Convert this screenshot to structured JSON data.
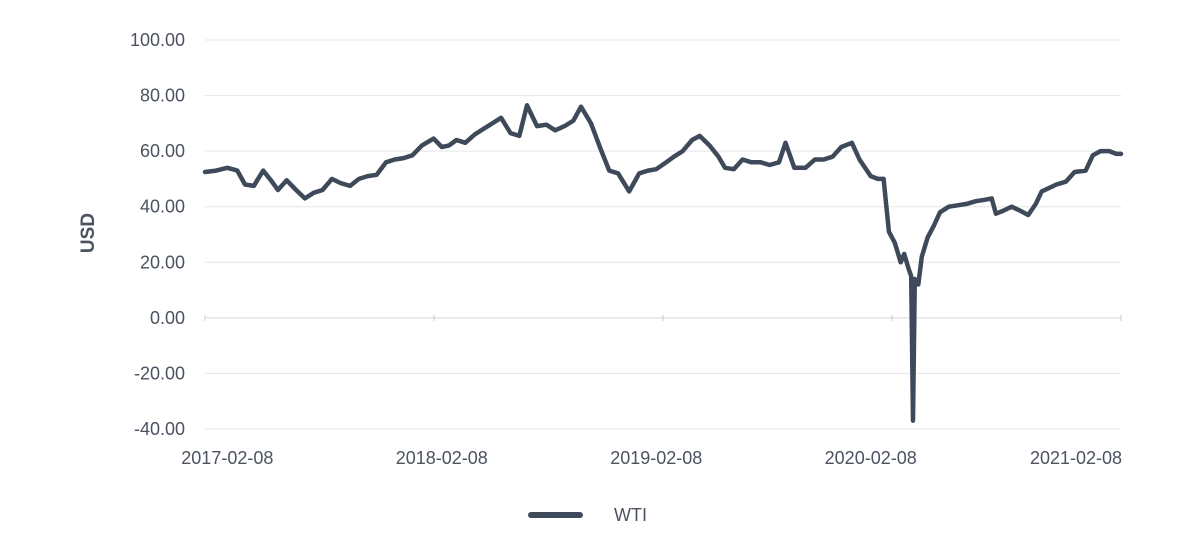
{
  "chart_data": {
    "type": "line",
    "title": "",
    "xlabel": "",
    "ylabel": "USD",
    "ylim": [
      -40,
      100
    ],
    "xlim": [
      "2017-01-01",
      "2021-04-09"
    ],
    "y_ticks": [
      "100.00",
      "80.00",
      "60.00",
      "40.00",
      "20.00",
      "0.00",
      "-20.00",
      "-40.00"
    ],
    "x_ticks": [
      "2017-02-08",
      "2018-02-08",
      "2019-02-08",
      "2020-02-08",
      "2021-02-08"
    ],
    "grid": "horizontal",
    "legend_position": "bottom",
    "line_color": "#3e4a5a",
    "series": [
      {
        "name": "WTI",
        "x": [
          "2017-01-01",
          "2017-01-20",
          "2017-02-08",
          "2017-02-25",
          "2017-03-10",
          "2017-03-25",
          "2017-04-10",
          "2017-04-25",
          "2017-05-05",
          "2017-05-20",
          "2017-06-05",
          "2017-06-20",
          "2017-07-05",
          "2017-07-20",
          "2017-08-05",
          "2017-08-20",
          "2017-09-05",
          "2017-09-20",
          "2017-10-05",
          "2017-10-20",
          "2017-11-05",
          "2017-11-20",
          "2017-12-05",
          "2017-12-20",
          "2018-01-05",
          "2018-01-25",
          "2018-02-08",
          "2018-02-20",
          "2018-03-05",
          "2018-03-20",
          "2018-04-05",
          "2018-04-20",
          "2018-05-05",
          "2018-05-20",
          "2018-06-05",
          "2018-06-20",
          "2018-07-03",
          "2018-07-20",
          "2018-08-05",
          "2018-08-20",
          "2018-09-05",
          "2018-09-20",
          "2018-10-03",
          "2018-10-20",
          "2018-11-05",
          "2018-11-20",
          "2018-12-05",
          "2018-12-24",
          "2019-01-10",
          "2019-01-25",
          "2019-02-08",
          "2019-02-25",
          "2019-03-10",
          "2019-03-25",
          "2019-04-10",
          "2019-04-23",
          "2019-05-10",
          "2019-05-25",
          "2019-06-05",
          "2019-06-20",
          "2019-07-05",
          "2019-07-20",
          "2019-08-05",
          "2019-08-20",
          "2019-09-05",
          "2019-09-16",
          "2019-10-01",
          "2019-10-20",
          "2019-11-05",
          "2019-11-20",
          "2019-12-05",
          "2019-12-20",
          "2020-01-07",
          "2020-01-20",
          "2020-02-08",
          "2020-02-20",
          "2020-03-01",
          "2020-03-10",
          "2020-03-20",
          "2020-03-30",
          "2020-04-05",
          "2020-04-12",
          "2020-04-17",
          "2020-04-20",
          "2020-04-23",
          "2020-04-29",
          "2020-05-05",
          "2020-05-15",
          "2020-05-25",
          "2020-06-05",
          "2020-06-20",
          "2020-07-05",
          "2020-07-20",
          "2020-08-05",
          "2020-08-20",
          "2020-09-01",
          "2020-09-08",
          "2020-09-20",
          "2020-10-05",
          "2020-10-20",
          "2020-11-02",
          "2020-11-15",
          "2020-11-25",
          "2020-12-05",
          "2020-12-20",
          "2021-01-05",
          "2021-01-20",
          "2021-02-08",
          "2021-02-20",
          "2021-03-05",
          "2021-03-20",
          "2021-04-01",
          "2021-04-09"
        ],
        "values": [
          52.5,
          53,
          54,
          53,
          48,
          47.5,
          53,
          49,
          46,
          49.5,
          46,
          43,
          45,
          46,
          50,
          48.5,
          47.5,
          50,
          51,
          51.5,
          56,
          57,
          57.5,
          58.5,
          62,
          64.5,
          61.5,
          62,
          64,
          63,
          66,
          68,
          70,
          72,
          66.5,
          65.5,
          76.5,
          69,
          69.5,
          67.5,
          69,
          71,
          76,
          70,
          61,
          53,
          52,
          45.5,
          52,
          53,
          53.5,
          56,
          58,
          60,
          64,
          65.5,
          62,
          58,
          54,
          53.5,
          57,
          56,
          56,
          55,
          56,
          63,
          54,
          54,
          57,
          57,
          58,
          61.5,
          63,
          57,
          51,
          50,
          50,
          31,
          27,
          20,
          23,
          18,
          15,
          -37,
          14,
          12,
          22,
          29,
          33,
          38,
          40,
          40.5,
          41,
          42,
          42.5,
          43,
          37.5,
          38.5,
          40,
          38.5,
          37,
          41,
          45.5,
          46.5,
          48,
          49,
          52.5,
          53,
          58.5,
          60,
          60,
          59,
          59
        ]
      }
    ]
  }
}
